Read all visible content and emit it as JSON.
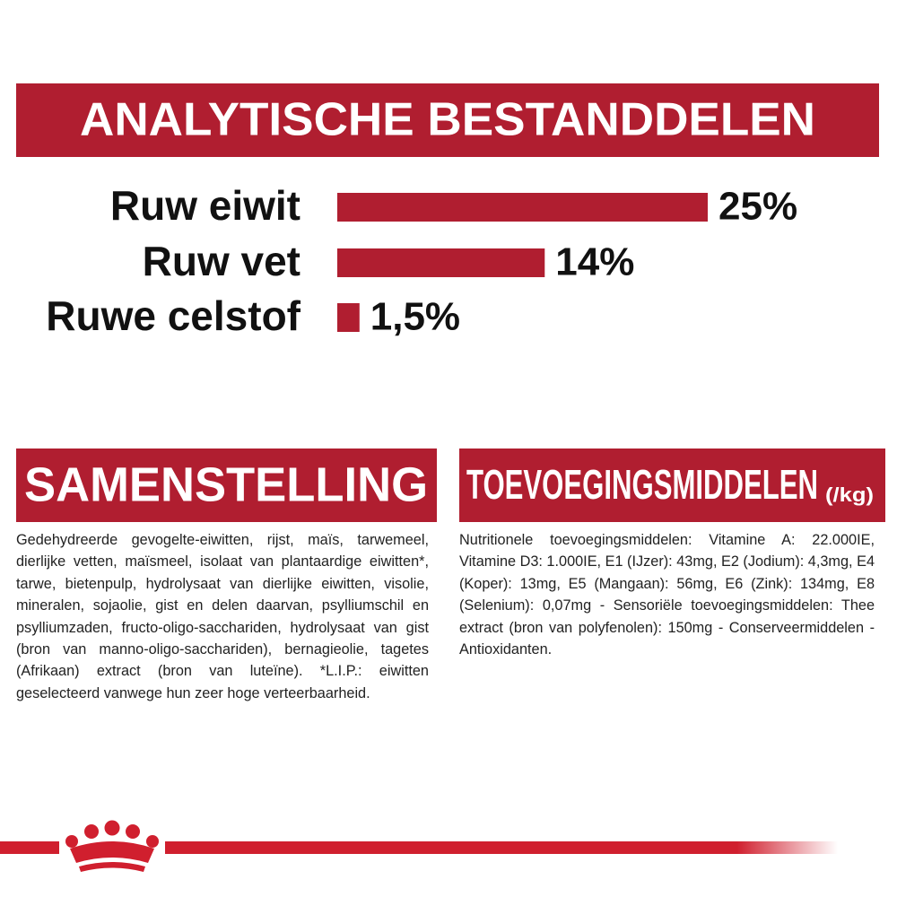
{
  "chart_data": {
    "type": "bar",
    "orientation": "horizontal",
    "title": "ANALYTISCHE BESTANDDELEN",
    "categories": [
      "Ruw eiwit",
      "Ruw vet",
      "Ruwe celstof"
    ],
    "values": [
      25,
      14,
      1.5
    ],
    "value_labels": [
      "25%",
      "14%",
      "1,5%"
    ],
    "color": "#b01e30"
  },
  "composition": {
    "title": "SAMENSTELLING",
    "text": "Gedehydreerde gevogelte-eiwitten, rijst, maïs, tarwemeel, dierlijke vetten, maïsmeel, isolaat van plantaardige eiwitten*, tarwe, bietenpulp, hydrolysaat van dierlijke eiwitten, visolie, mineralen, sojaolie, gist en delen daarvan, psylliumschil en psylliumzaden, fructo-oligo-sacchariden, hydrolysaat van gist (bron van manno-oligo-sacchariden), bernagieolie, tagetes (Afrikaan) extract (bron van luteïne). *L.I.P.: eiwitten geselecteerd vanwege hun zeer hoge verteerbaarheid."
  },
  "additives": {
    "title": "TOEVOEGINGSMIDDELEN",
    "unit": "(/kg)",
    "text": "Nutritionele toevoegingsmiddelen: Vitamine A: 22.000IE, Vitamine D3: 1.000IE, E1 (IJzer): 43mg, E2 (Jodium): 4,3mg, E4 (Koper): 13mg, E5 (Mangaan): 56mg, E6 (Zink): 134mg, E8 (Selenium): 0,07mg - Sensoriële toevoegingsmiddelen: Thee extract (bron van polyfenolen): 150mg - Conserveermiddelen - Antioxidanten."
  }
}
